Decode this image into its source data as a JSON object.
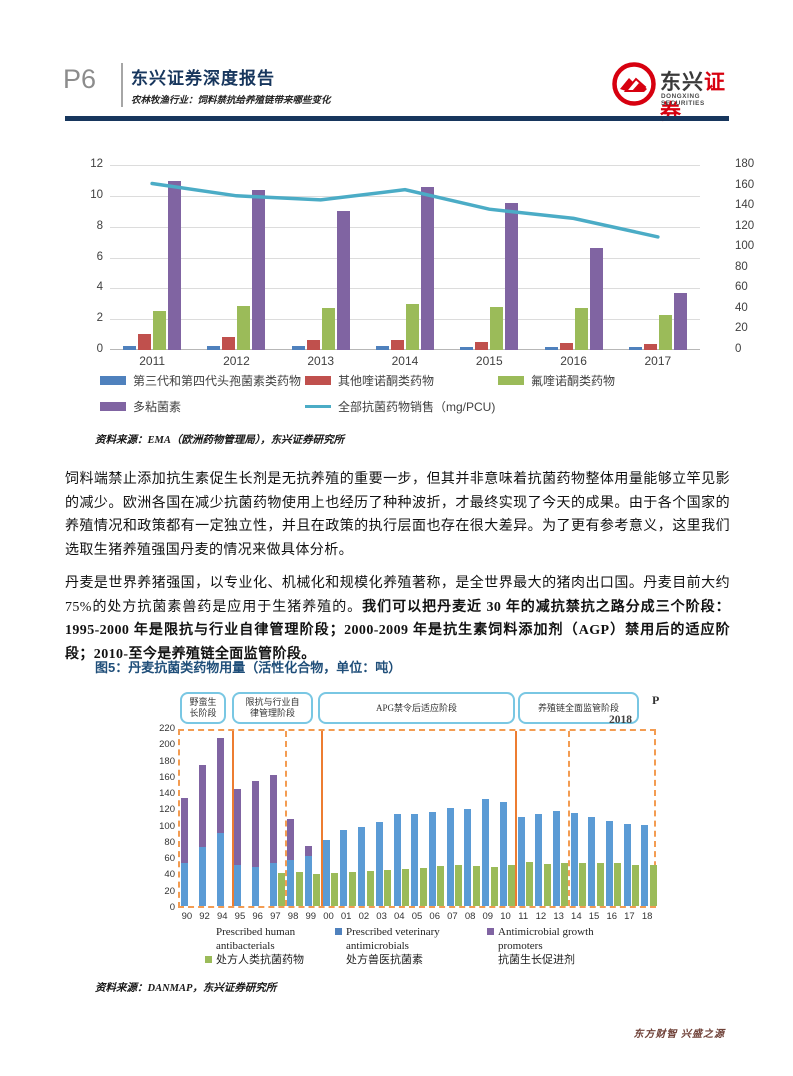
{
  "header": {
    "page_no": "P6",
    "report_type": "东兴证券深度报告",
    "report_subtitle": "农林牧渔行业：饲料禁抗给养殖链带来哪些变化",
    "logo_cn_dark": "东兴",
    "logo_cn_red": "证券",
    "logo_en": "DONGXING SECURITIES"
  },
  "body": {
    "paragraph1": "饲料端禁止添加抗生素促生长剂是无抗养殖的重要一步，但其并非意味着抗菌药物整体用量能够立竿见影的减少。欧洲各国在减少抗菌药物使用上也经历了种种波折，才最终实现了今天的成果。由于各个国家的养殖情况和政策都有一定独立性，并且在政策的执行层面也存在很大差异。为了更有参考意义，这里我们选取生猪养殖强国丹麦的情况来做具体分析。",
    "paragraph2_normal": "丹麦是世界养猪强国，以专业化、机械化和规模化养殖著称，是全世界最大的猪肉出口国。丹麦目前大约 75%的处方抗菌素兽药是应用于生猪养殖的。",
    "paragraph2_bold": "我们可以把丹麦近 30 年的减抗禁抗之路分成三个阶段：1995-2000 年是限抗与行业自律管理阶段；2000-2009 年是抗生素饲料添加剂（AGP）禁用后的适应阶段；2010-至今是养殖链全面监管阶段。"
  },
  "footer": {
    "slogan": "东方财智 兴盛之源"
  },
  "chart_data": [
    {
      "type": "bar",
      "subtype": "grouped-bar-with-line",
      "categories": [
        "2011",
        "2012",
        "2013",
        "2014",
        "2015",
        "2016",
        "2017"
      ],
      "series": [
        {
          "name": "第三代和第四代头孢菌素类药物",
          "kind": "bar",
          "color": "#4f81bd",
          "values": [
            0.25,
            0.27,
            0.27,
            0.27,
            0.2,
            0.2,
            0.2
          ]
        },
        {
          "name": "其他喹诺酮类药物",
          "kind": "bar",
          "color": "#c0504d",
          "values": [
            1.05,
            0.85,
            0.65,
            0.65,
            0.55,
            0.45,
            0.4
          ]
        },
        {
          "name": "氟喹诺酮类药物",
          "kind": "bar",
          "color": "#9bbb59",
          "values": [
            2.5,
            2.85,
            2.7,
            3.0,
            2.8,
            2.7,
            2.25
          ]
        },
        {
          "name": "多粘菌素",
          "kind": "bar",
          "color": "#8064a2",
          "values": [
            10.95,
            10.35,
            9.0,
            10.55,
            9.55,
            6.6,
            3.7
          ]
        },
        {
          "name": "全部抗菌药物销售（mg/PCU)",
          "kind": "line",
          "axis": "right",
          "color": "#4bacc6",
          "values": [
            162,
            150,
            146,
            156,
            137,
            128,
            110
          ]
        }
      ],
      "left_axis": {
        "min": 0,
        "max": 12,
        "step": 2
      },
      "right_axis": {
        "min": 0,
        "max": 180,
        "step": 20
      },
      "grid": true,
      "legend_position": "bottom",
      "source": "资料来源：EMA（欧洲药物管理局），东兴证券研究所"
    },
    {
      "type": "bar",
      "subtype": "stacked-and-grouped",
      "title": "图5：丹麦抗菌类药物用量（活性化合物，单位：吨）",
      "ylabel": "吨（活性化合物）",
      "categories": [
        "90",
        "92",
        "94",
        "95",
        "96",
        "97",
        "98",
        "99",
        "00",
        "01",
        "02",
        "03",
        "04",
        "05",
        "06",
        "07",
        "08",
        "09",
        "10",
        "11",
        "12",
        "13",
        "14",
        "15",
        "16",
        "17",
        "18"
      ],
      "series": [
        {
          "name": "Prescribed veterinary antimicrobials（处方兽医抗菌素）",
          "color": "#5b9bd5",
          "stack": "vet",
          "values": [
            53,
            73,
            90,
            50,
            48,
            53,
            57,
            62,
            81,
            94,
            97,
            103,
            113,
            113,
            115,
            120,
            119,
            131,
            128,
            109,
            113,
            117,
            114,
            110,
            105,
            101,
            100
          ]
        },
        {
          "name": "Antimicrobial growth promoters（抗菌生长促进剂）",
          "color": "#8064a2",
          "stack": "vet",
          "values": [
            80,
            100,
            116,
            94,
            106,
            108,
            50,
            12,
            0,
            0,
            0,
            0,
            0,
            0,
            0,
            0,
            0,
            0,
            0,
            0,
            0,
            0,
            0,
            0,
            0,
            0,
            0
          ]
        },
        {
          "name": "Prescribed human antibacterials（处方人类抗菌药物）",
          "color": "#9bbb59",
          "stack": "human",
          "values": [
            0,
            0,
            0,
            0,
            0,
            40,
            42,
            39,
            41,
            42,
            43,
            44,
            45,
            47,
            49,
            50,
            49,
            48,
            51,
            54,
            52,
            53,
            53,
            53,
            53,
            51,
            50
          ]
        }
      ],
      "y_axis": {
        "min": 0,
        "max": 220,
        "step": 20
      },
      "grid": false,
      "phases": [
        {
          "lines": [
            "野蛮生",
            "长阶段"
          ],
          "from": "90",
          "to": "94"
        },
        {
          "lines": [
            "限抗与行业自",
            "律管理阶段"
          ],
          "from": "95",
          "to": "99"
        },
        {
          "lines": [
            "APG禁令后适应阶段"
          ],
          "from": "00",
          "to": "10"
        },
        {
          "lines": [
            "养殖链全面监管阶段"
          ],
          "from": "11",
          "to": "18"
        }
      ],
      "dividers": {
        "solid_after": [
          "94",
          "99",
          "10"
        ],
        "dashed_after": [
          "97",
          "13"
        ]
      },
      "legend": [
        {
          "en": "Prescribed human antibacterials",
          "cn": "处方人类抗菌药物",
          "color": "#9bbb59"
        },
        {
          "en": "Prescribed veterinary antimicrobials",
          "cn": "处方兽医抗菌素",
          "color": "#4f81bd"
        },
        {
          "en": "Antimicrobial growth promoters",
          "cn": "抗菌生长促进剂",
          "color": "#8064a2"
        }
      ],
      "artifacts": {
        "p": "P",
        "year": "2018"
      },
      "source": "资料来源：DANMAP，东兴证券研究所"
    }
  ]
}
